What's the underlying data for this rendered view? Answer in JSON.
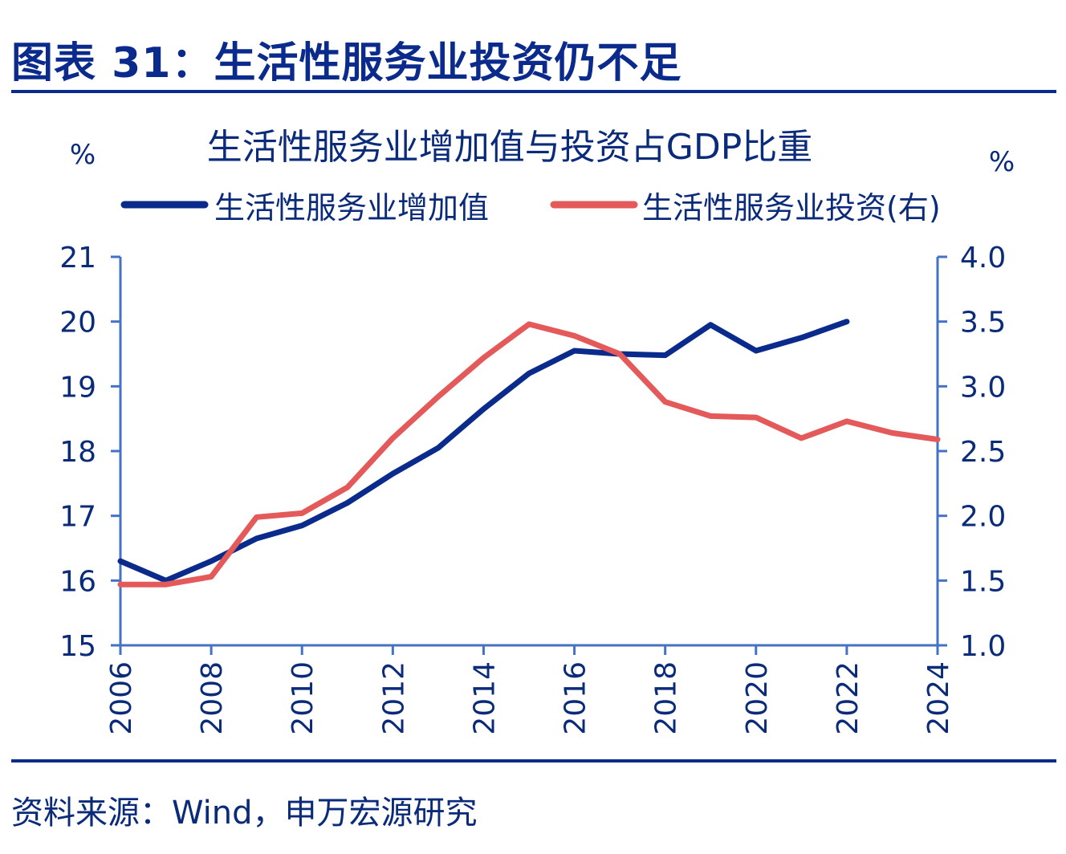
{
  "figure": {
    "title": "图表 31：生活性服务业投资仍不足",
    "source": "资料来源：Wind，申万宏源研究"
  },
  "chart_data": {
    "type": "line",
    "title": "生活性服务业增加值与投资占GDP比重",
    "left_unit": "%",
    "right_unit": "%",
    "ylim_left": [
      15,
      21
    ],
    "ylim_right": [
      1.0,
      4.0
    ],
    "xlim": [
      2006,
      2024
    ],
    "x_ticks": [
      2006,
      2008,
      2010,
      2012,
      2014,
      2016,
      2018,
      2020,
      2022,
      2024
    ],
    "y_ticks_left": [
      "15",
      "16",
      "17",
      "18",
      "19",
      "20",
      "21"
    ],
    "y_ticks_right": [
      "1.0",
      "1.5",
      "2.0",
      "2.5",
      "3.0",
      "3.5",
      "4.0"
    ],
    "grid": false,
    "legend_position": "top",
    "series": [
      {
        "name": "生活性服务业增加值",
        "axis": "left",
        "color": "#0a2a8c",
        "x": [
          2006,
          2007,
          2008,
          2009,
          2010,
          2011,
          2012,
          2013,
          2014,
          2015,
          2016,
          2017,
          2018,
          2019,
          2020,
          2021,
          2022
        ],
        "values": [
          16.3,
          16.0,
          16.3,
          16.65,
          16.85,
          17.2,
          17.65,
          18.05,
          18.65,
          19.2,
          19.55,
          19.5,
          19.48,
          19.95,
          19.55,
          19.75,
          20.0
        ]
      },
      {
        "name": "生活性服务业投资(右)",
        "axis": "right",
        "color": "#e45a5a",
        "x": [
          2006,
          2007,
          2008,
          2009,
          2010,
          2011,
          2012,
          2013,
          2014,
          2015,
          2016,
          2017,
          2018,
          2019,
          2020,
          2021,
          2022,
          2023,
          2024
        ],
        "values": [
          1.47,
          1.47,
          1.53,
          1.99,
          2.02,
          2.22,
          2.6,
          2.92,
          3.22,
          3.48,
          3.39,
          3.25,
          2.88,
          2.77,
          2.76,
          2.6,
          2.73,
          2.64,
          2.59
        ]
      }
    ]
  }
}
